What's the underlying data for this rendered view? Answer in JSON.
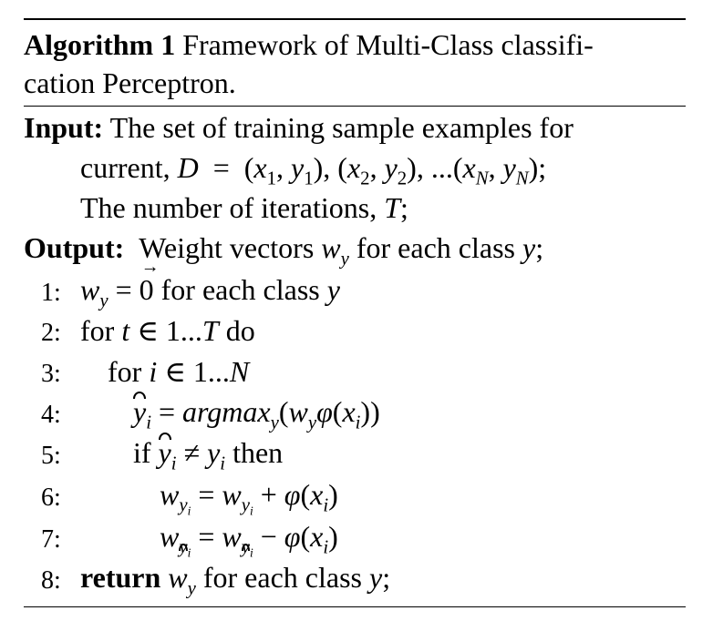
{
  "algorithm": {
    "label": "Algorithm 1",
    "title_line1": "Framework of Multi-Class classifi-",
    "title_line2": "cation Perceptron."
  },
  "input": {
    "label": "Input:",
    "text_line1": "The set of training sample examples for",
    "text_line2_prefix": "current, ",
    "text_line2_math": "D = (x₁, y₁), (x₂, y₂), ...(x_N, y_N);",
    "text_line3": "The number of iterations, T;"
  },
  "output": {
    "label": "Output:",
    "text": "Weight vectors w_y for each class y;"
  },
  "steps": [
    {
      "num": "1:",
      "text": "w_y = 0⃗ for each class y"
    },
    {
      "num": "2:",
      "text": "for t ∈ 1...T do"
    },
    {
      "num": "3:",
      "text": "for i ∈ 1...N"
    },
    {
      "num": "4:",
      "text": "ŷ_i = argmax_y(w_y φ(x_i))"
    },
    {
      "num": "5:",
      "text": "if ŷ_i ≠ y_i then"
    },
    {
      "num": "6:",
      "text": "w_{y_i} = w_{y_i} + φ(x_i)"
    },
    {
      "num": "7:",
      "text": "w_{ŷ_i} = w_{ŷ_i} − φ(x_i)"
    },
    {
      "num": "8:",
      "text": "return w_y for each class y;"
    }
  ]
}
